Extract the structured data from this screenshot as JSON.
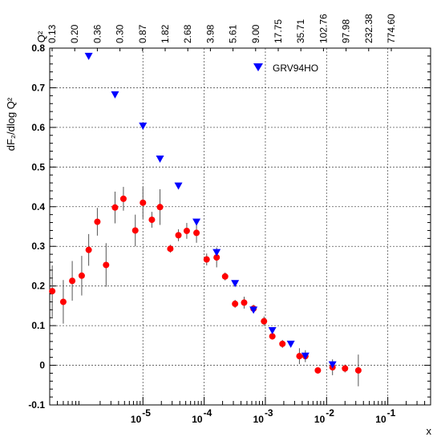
{
  "chart_data": {
    "type": "scatter",
    "xlabel": "x",
    "ylabel": "dF₂/dlog Q²",
    "ylim": [
      -0.1,
      0.8
    ],
    "xscale": "log",
    "xlim": [
      3e-07,
      0.5
    ],
    "x_decades": [
      -5,
      -4,
      -3,
      -2,
      -1
    ],
    "y_ticks": [
      "-0.1",
      "0",
      "0.1",
      "0.2",
      "0.3",
      "0.4",
      "0.5",
      "0.6",
      "0.7",
      "0.8"
    ],
    "grid": true,
    "top_axis": {
      "title": "Q²",
      "labels": [
        "0.13",
        "0.20",
        "0.36",
        "0.30",
        "0.87",
        "1.82",
        "2.68",
        "3.98",
        "5.61",
        "9.00",
        "17.75",
        "35.71",
        "102.76",
        "97.98",
        "232.38",
        "774.60"
      ]
    },
    "legend": {
      "position": "top-right",
      "entries": [
        {
          "name": "GRV94HO",
          "marker": "triangle-down",
          "color": "#0000ff"
        }
      ]
    },
    "series": [
      {
        "name": "data",
        "marker": "circle",
        "color": "#ff0000",
        "points": [
          {
            "x": 3.3e-07,
            "y": 0.187,
            "err": 0.065
          },
          {
            "x": 5e-07,
            "y": 0.16,
            "err": 0.055
          },
          {
            "x": 7e-07,
            "y": 0.213,
            "err": 0.05
          },
          {
            "x": 1e-06,
            "y": 0.226,
            "err": 0.05
          },
          {
            "x": 1.3e-06,
            "y": 0.291,
            "err": 0.04
          },
          {
            "x": 1.8e-06,
            "y": 0.362,
            "err": 0.035
          },
          {
            "x": 2.5e-06,
            "y": 0.253,
            "err": 0.055
          },
          {
            "x": 3.5e-06,
            "y": 0.398,
            "err": 0.04
          },
          {
            "x": 4.8e-06,
            "y": 0.42,
            "err": 0.03
          },
          {
            "x": 7.5e-06,
            "y": 0.34,
            "err": 0.04
          },
          {
            "x": 1e-05,
            "y": 0.41,
            "err": 0.04
          },
          {
            "x": 1.4e-05,
            "y": 0.367,
            "err": 0.02
          },
          {
            "x": 1.9e-05,
            "y": 0.399,
            "err": 0.045
          },
          {
            "x": 2.8e-05,
            "y": 0.294,
            "err": 0.01
          },
          {
            "x": 3.8e-05,
            "y": 0.328,
            "err": 0.015
          },
          {
            "x": 5.2e-05,
            "y": 0.339,
            "err": 0.02
          },
          {
            "x": 7.5e-05,
            "y": 0.334,
            "err": 0.025
          },
          {
            "x": 0.00011,
            "y": 0.267,
            "err": 0.015
          },
          {
            "x": 0.00016,
            "y": 0.272,
            "err": 0.025
          },
          {
            "x": 0.00022,
            "y": 0.224,
            "err": 0.01
          },
          {
            "x": 0.00032,
            "y": 0.155,
            "err": 0.01
          },
          {
            "x": 0.00045,
            "y": 0.158,
            "err": 0.015
          },
          {
            "x": 0.00064,
            "y": 0.143,
            "err": 0.01
          },
          {
            "x": 0.00095,
            "y": 0.111,
            "err": 0.012
          },
          {
            "x": 0.0013,
            "y": 0.073,
            "err": 0.008
          },
          {
            "x": 0.0019,
            "y": 0.054,
            "err": 0.01
          },
          {
            "x": 0.0036,
            "y": 0.023,
            "err": 0.02
          },
          {
            "x": 0.0045,
            "y": 0.023,
            "err": 0.015
          },
          {
            "x": 0.0072,
            "y": -0.013,
            "err": 0.005
          },
          {
            "x": 0.0125,
            "y": -0.005,
            "err": 0.02
          },
          {
            "x": 0.02,
            "y": -0.008,
            "err": 0.01
          },
          {
            "x": 0.033,
            "y": -0.013,
            "err": 0.04
          }
        ]
      },
      {
        "name": "GRV94HO",
        "marker": "triangle-down",
        "color": "#0000ff",
        "points": [
          {
            "x": 1.3e-06,
            "y": 0.78
          },
          {
            "x": 3.5e-06,
            "y": 0.683
          },
          {
            "x": 1e-05,
            "y": 0.604
          },
          {
            "x": 1.9e-05,
            "y": 0.521
          },
          {
            "x": 3.8e-05,
            "y": 0.453
          },
          {
            "x": 7.5e-05,
            "y": 0.362
          },
          {
            "x": 0.00016,
            "y": 0.285
          },
          {
            "x": 0.00032,
            "y": 0.207
          },
          {
            "x": 0.00064,
            "y": 0.14
          },
          {
            "x": 0.0013,
            "y": 0.088
          },
          {
            "x": 0.0026,
            "y": 0.054
          },
          {
            "x": 0.0045,
            "y": 0.024
          },
          {
            "x": 0.0125,
            "y": 0.002
          }
        ]
      }
    ]
  }
}
